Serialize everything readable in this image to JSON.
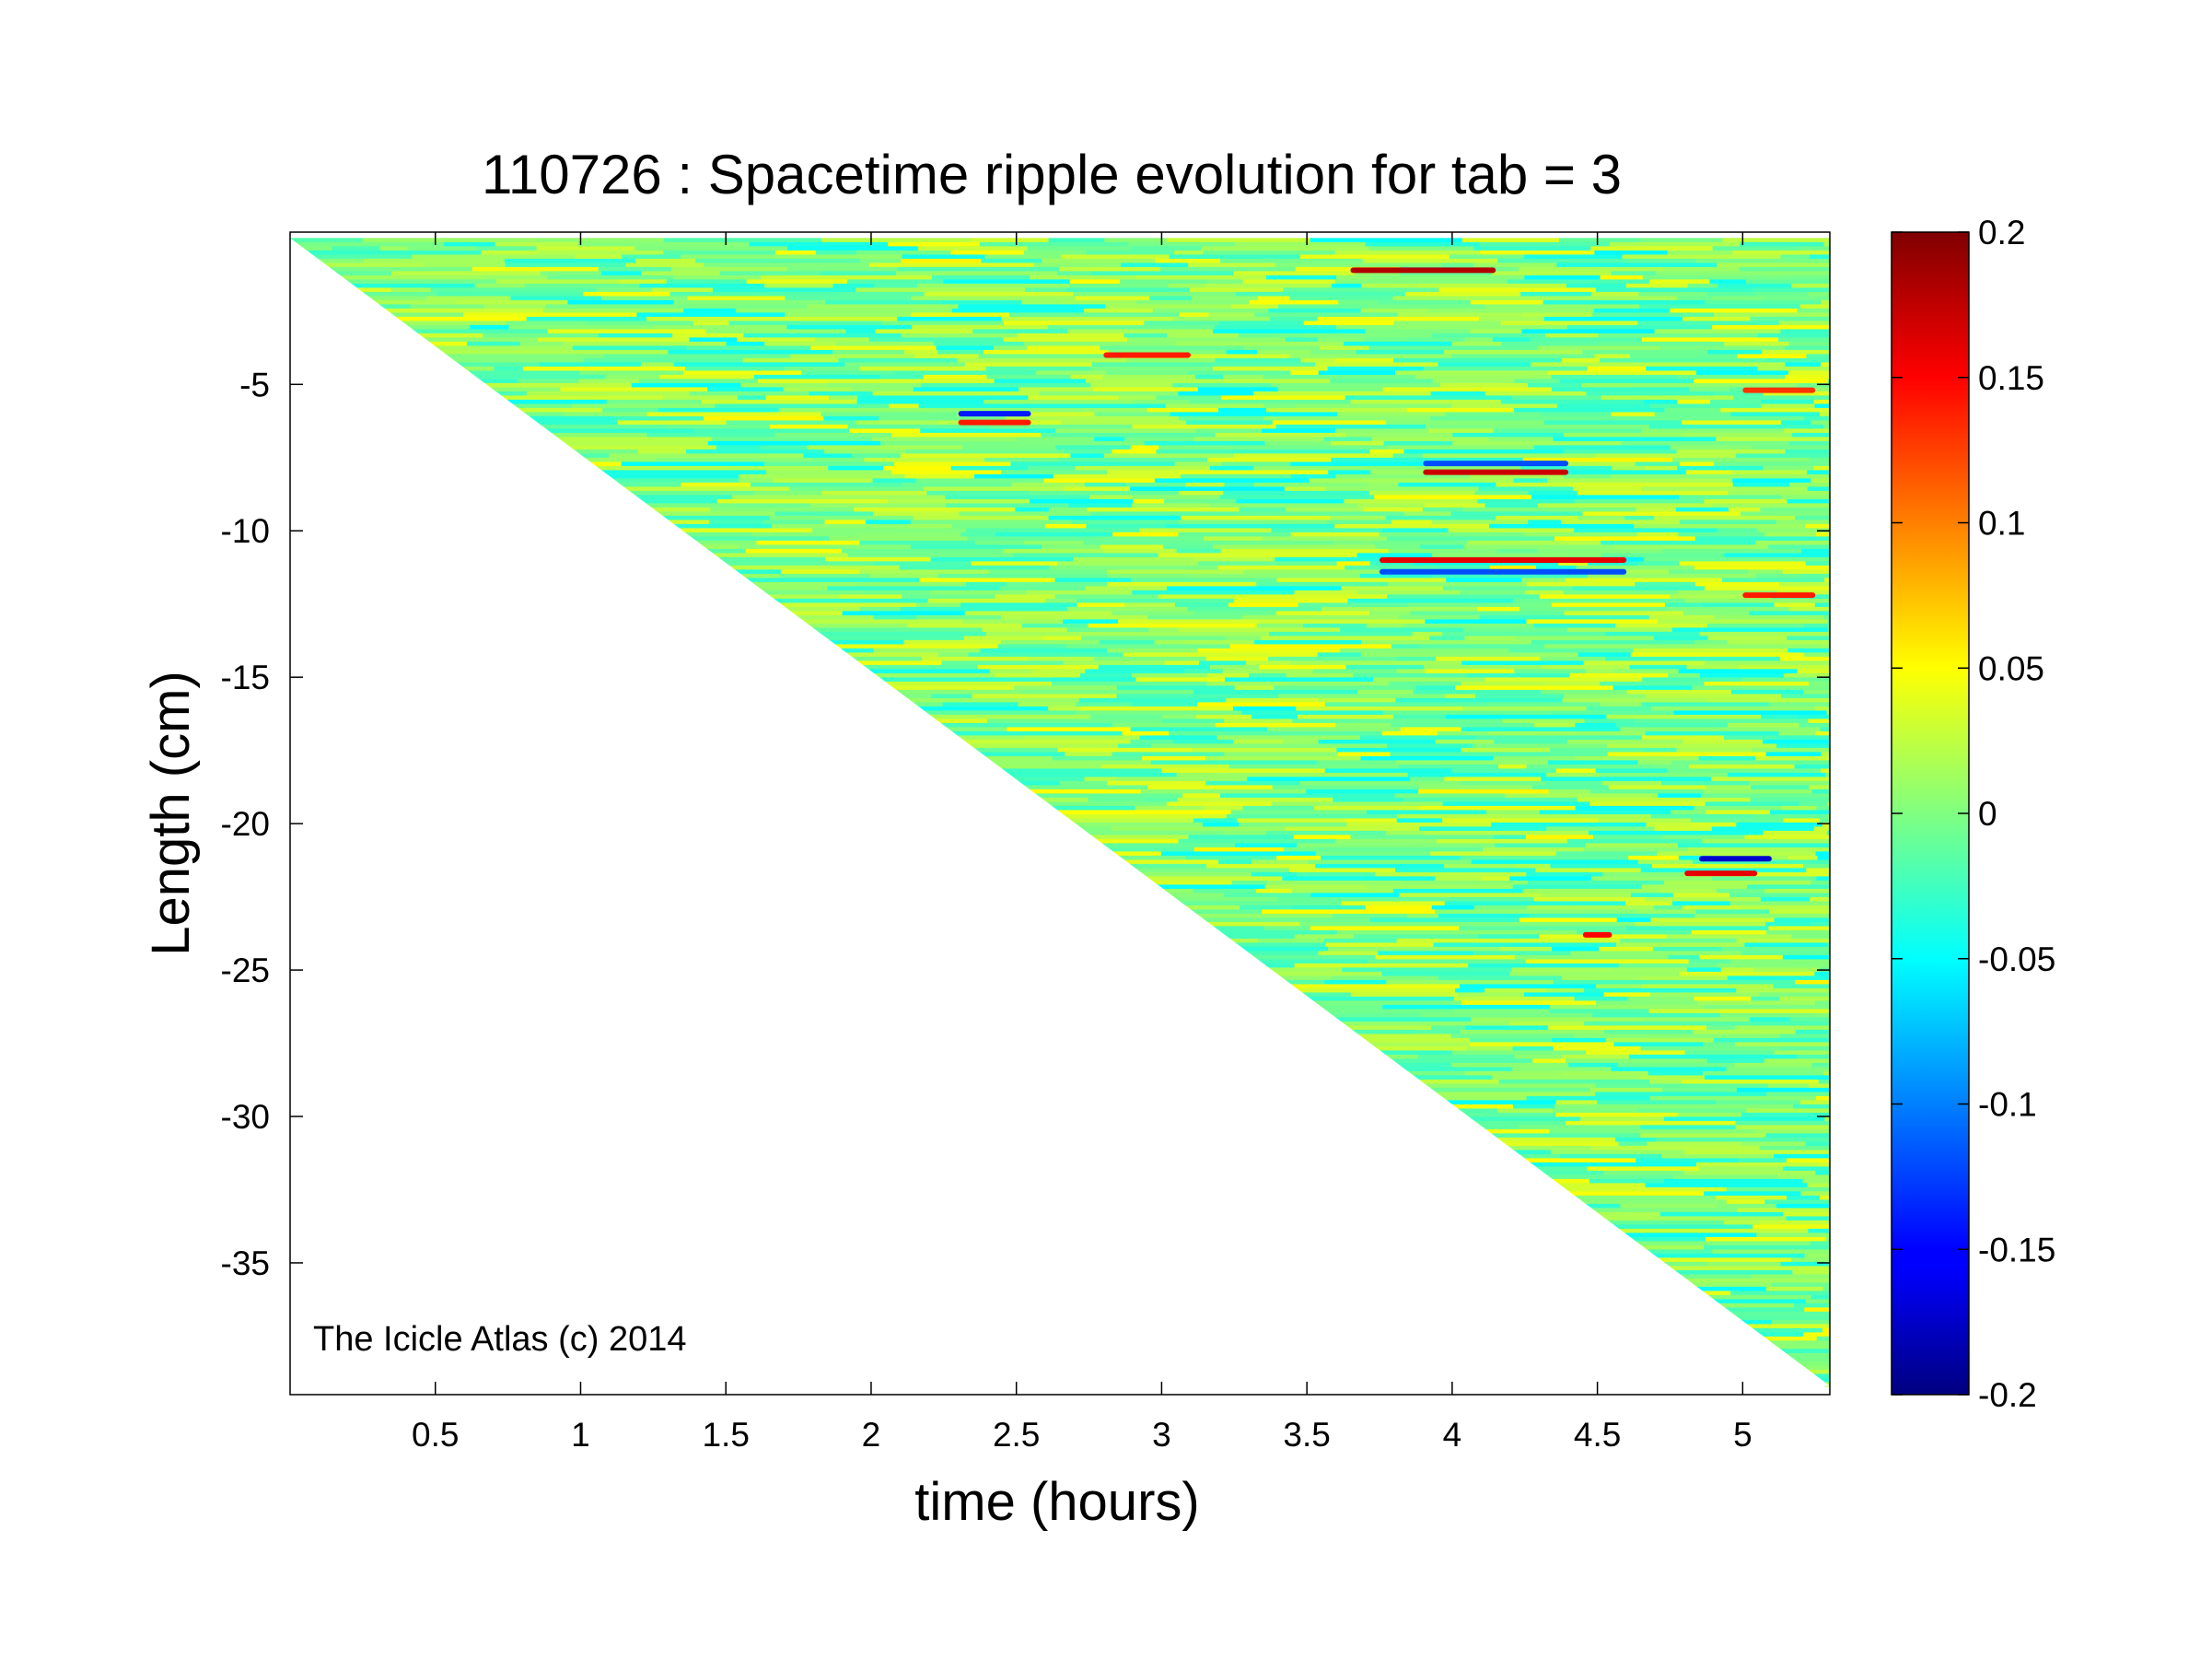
{
  "chart_data": {
    "type": "heatmap",
    "title": "110726 : Spacetime ripple evolution for tab = 3",
    "xlabel": "time (hours)",
    "ylabel": "Length (cm)",
    "xlim": [
      0,
      5.3
    ],
    "ylim": [
      -39.5,
      0.2
    ],
    "xticks": [
      0.5,
      1,
      1.5,
      2,
      2.5,
      3,
      3.5,
      4,
      4.5,
      5
    ],
    "xtick_labels": [
      "0.5",
      "1",
      "1.5",
      "2",
      "2.5",
      "3",
      "3.5",
      "4",
      "4.5",
      "5"
    ],
    "yticks": [
      -5,
      -10,
      -15,
      -20,
      -25,
      -30,
      -35
    ],
    "ytick_labels": [
      "-5",
      "-10",
      "-15",
      "-20",
      "-25",
      "-30",
      "-35"
    ],
    "colorbar": {
      "colormap": "jet",
      "clim": [
        -0.2,
        0.2
      ],
      "ticks": [
        0.2,
        0.15,
        0.1,
        0.05,
        0,
        -0.05,
        -0.1,
        -0.15,
        -0.2
      ],
      "tick_labels": [
        "0.2",
        "0.15",
        "0.1",
        "0.05",
        "0",
        "-0.05",
        "-0.1",
        "-0.15",
        "-0.2"
      ]
    },
    "data_boundary": {
      "start": [
        0,
        0
      ],
      "end": [
        5.3,
        -39.2
      ]
    },
    "background_value": 0,
    "features": [
      {
        "t_start": 3.65,
        "t_end": 4.15,
        "length": -1.1,
        "value": 0.18
      },
      {
        "t_start": 2.8,
        "t_end": 3.1,
        "length": -4.0,
        "value": 0.14
      },
      {
        "t_start": 2.3,
        "t_end": 2.55,
        "length": -6.0,
        "value": -0.14
      },
      {
        "t_start": 2.3,
        "t_end": 2.55,
        "length": -6.3,
        "value": 0.14
      },
      {
        "t_start": 3.9,
        "t_end": 4.4,
        "length": -7.7,
        "value": -0.12
      },
      {
        "t_start": 3.9,
        "t_end": 4.4,
        "length": -8.0,
        "value": 0.17
      },
      {
        "t_start": 3.75,
        "t_end": 4.6,
        "length": -11.0,
        "value": 0.16
      },
      {
        "t_start": 3.75,
        "t_end": 4.6,
        "length": -11.4,
        "value": -0.12
      },
      {
        "t_start": 5.0,
        "t_end": 5.25,
        "length": -12.2,
        "value": 0.14
      },
      {
        "t_start": 4.85,
        "t_end": 5.1,
        "length": -21.2,
        "value": -0.17
      },
      {
        "t_start": 4.8,
        "t_end": 5.05,
        "length": -21.7,
        "value": 0.16
      },
      {
        "t_start": 4.45,
        "t_end": 4.55,
        "length": -23.8,
        "value": 0.15
      },
      {
        "t_start": 5.0,
        "t_end": 5.25,
        "length": -5.2,
        "value": 0.13
      }
    ]
  },
  "annotation": "The Icicle Atlas (c) 2014"
}
